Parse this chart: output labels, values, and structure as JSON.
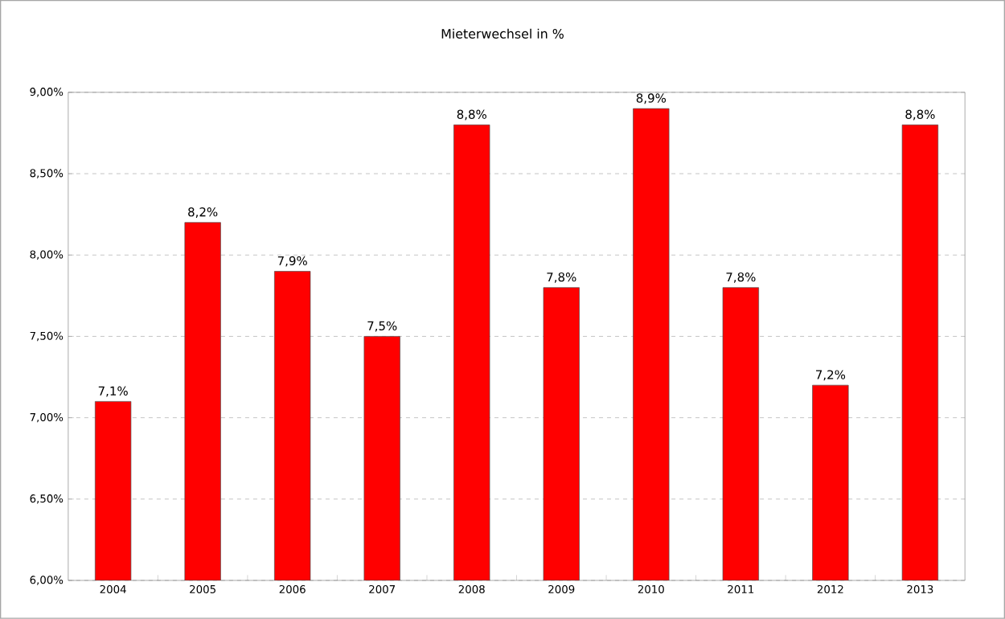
{
  "chart_data": {
    "type": "bar",
    "title": "Mieterwechsel in %",
    "categories": [
      "2004",
      "2005",
      "2006",
      "2007",
      "2008",
      "2009",
      "2010",
      "2011",
      "2012",
      "2013"
    ],
    "values": [
      7.1,
      8.2,
      7.9,
      7.5,
      8.8,
      7.8,
      8.9,
      7.8,
      7.2,
      8.8
    ],
    "value_labels": [
      "7,1%",
      "8,2%",
      "7,9%",
      "7,5%",
      "8,8%",
      "7,8%",
      "8,9%",
      "7,8%",
      "7,2%",
      "8,8%"
    ],
    "color": "#ff0000",
    "ylim": [
      6,
      9
    ],
    "yticks": [
      {
        "value": 6,
        "label": "6,00%"
      },
      {
        "value": 6.5,
        "label": "6,50%"
      },
      {
        "value": 7,
        "label": "7,00%"
      },
      {
        "value": 7.5,
        "label": "7,50%"
      },
      {
        "value": 8,
        "label": "8,00%"
      },
      {
        "value": 8.5,
        "label": "8,50%"
      },
      {
        "value": 9,
        "label": "9,00%"
      }
    ],
    "grid": "y"
  }
}
